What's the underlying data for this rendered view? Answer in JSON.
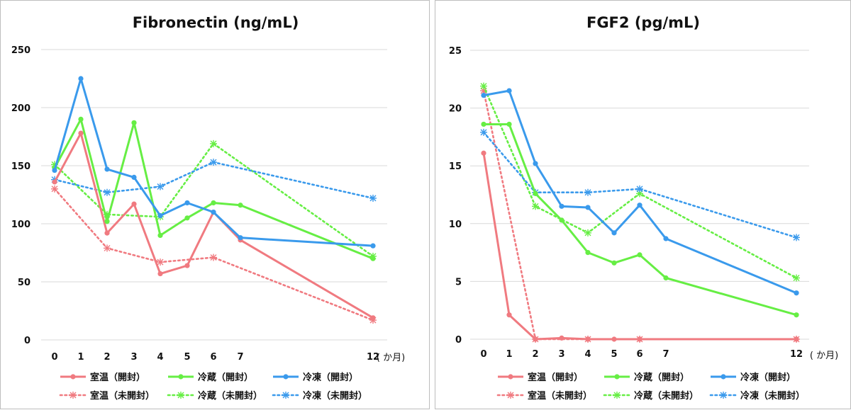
{
  "colors": {
    "room": "#F07A80",
    "fridge": "#66EE44",
    "frozen": "#3A9AEC",
    "grid": "#d9d9d9"
  },
  "legend_labels": [
    "室温（開封）",
    "冷蔵（開封）",
    "冷凍（開封）",
    "室温（未開封）",
    "冷蔵（未開封）",
    "冷凍（未開封）"
  ],
  "chart_data": [
    {
      "type": "line",
      "title": "Fibronectin (ng/mL)",
      "x_ticks": [
        0,
        1,
        2,
        3,
        4,
        5,
        6,
        7,
        12
      ],
      "x_unit": "( か月)",
      "ylim": [
        0,
        250
      ],
      "y_ticks": [
        0,
        50,
        100,
        150,
        200,
        250
      ],
      "series": [
        {
          "name": "室温（開封）",
          "color": "room",
          "style": "solid",
          "marker": "circle",
          "x": [
            0,
            1,
            2,
            3,
            4,
            5,
            6,
            7,
            12
          ],
          "values": [
            136,
            178,
            92,
            117,
            57,
            64,
            110,
            86,
            19
          ]
        },
        {
          "name": "冷蔵（開封）",
          "color": "fridge",
          "style": "solid",
          "marker": "circle",
          "x": [
            0,
            1,
            2,
            3,
            4,
            5,
            6,
            7,
            12
          ],
          "values": [
            148,
            190,
            102,
            187,
            90,
            105,
            118,
            116,
            70
          ]
        },
        {
          "name": "冷凍（開封）",
          "color": "frozen",
          "style": "solid",
          "marker": "circle",
          "x": [
            0,
            1,
            2,
            3,
            4,
            5,
            6,
            7,
            12
          ],
          "values": [
            146,
            225,
            147,
            140,
            107,
            118,
            110,
            88,
            81
          ]
        },
        {
          "name": "室温（未開封）",
          "color": "room",
          "style": "dotted",
          "marker": "star",
          "x": [
            0,
            2,
            4,
            6,
            12
          ],
          "values": [
            130,
            79,
            67,
            71,
            17
          ]
        },
        {
          "name": "冷蔵（未開封）",
          "color": "fridge",
          "style": "dotted",
          "marker": "star",
          "x": [
            0,
            2,
            4,
            6,
            12
          ],
          "values": [
            151,
            108,
            106,
            169,
            72
          ]
        },
        {
          "name": "冷凍（未開封）",
          "color": "frozen",
          "style": "dotted",
          "marker": "star",
          "x": [
            0,
            2,
            4,
            6,
            12
          ],
          "values": [
            138,
            127,
            132,
            153,
            122
          ]
        }
      ]
    },
    {
      "type": "line",
      "title": "FGF2 (pg/mL)",
      "x_ticks": [
        0,
        1,
        2,
        3,
        4,
        5,
        6,
        7,
        12
      ],
      "x_unit": "( か月)",
      "ylim": [
        0,
        25
      ],
      "y_ticks": [
        0,
        5,
        10,
        15,
        20,
        25
      ],
      "series": [
        {
          "name": "室温（開封）",
          "color": "room",
          "style": "solid",
          "marker": "circle",
          "x": [
            0,
            1,
            2,
            3,
            4,
            5,
            6,
            12
          ],
          "values": [
            16.1,
            2.1,
            0,
            0.1,
            0,
            0,
            0,
            0
          ]
        },
        {
          "name": "冷蔵（開封）",
          "color": "fridge",
          "style": "solid",
          "marker": "circle",
          "x": [
            0,
            1,
            2,
            3,
            4,
            5,
            6,
            7,
            12
          ],
          "values": [
            18.6,
            18.6,
            12.6,
            10.3,
            7.5,
            6.6,
            7.3,
            5.3,
            2.1
          ]
        },
        {
          "name": "冷凍（開封）",
          "color": "frozen",
          "style": "solid",
          "marker": "circle",
          "x": [
            0,
            1,
            2,
            3,
            4,
            5,
            6,
            7,
            12
          ],
          "values": [
            21.1,
            21.5,
            15.2,
            11.5,
            11.4,
            9.2,
            11.6,
            8.7,
            4.0
          ]
        },
        {
          "name": "室温（未開封）",
          "color": "room",
          "style": "dotted",
          "marker": "star",
          "x": [
            0,
            2,
            4,
            6,
            12
          ],
          "values": [
            21.5,
            0,
            0,
            0,
            0
          ]
        },
        {
          "name": "冷蔵（未開封）",
          "color": "fridge",
          "style": "dotted",
          "marker": "star",
          "x": [
            0,
            2,
            4,
            6,
            12
          ],
          "values": [
            21.9,
            11.5,
            9.2,
            12.6,
            5.3
          ]
        },
        {
          "name": "冷凍（未開封）",
          "color": "frozen",
          "style": "dotted",
          "marker": "star",
          "x": [
            0,
            2,
            4,
            6,
            12
          ],
          "values": [
            17.9,
            12.7,
            12.7,
            13.0,
            8.8
          ]
        }
      ]
    }
  ]
}
